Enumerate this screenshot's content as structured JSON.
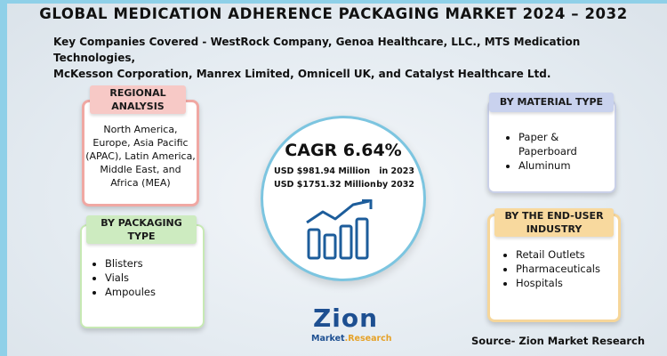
{
  "title": "GLOBAL MEDICATION ADHERENCE PACKAGING MARKET 2024 – 2032",
  "companies": {
    "line1": "Key Companies Covered - WestRock Company, Genoa Healthcare, LLC., MTS Medication Technologies,",
    "line2": "McKesson Corporation, Manrex Limited, Omnicell UK, and Catalyst Healthcare Ltd."
  },
  "regional": {
    "header_line1": "REGIONAL",
    "header_line2": "ANALYSIS",
    "body": "North America, Europe, Asia Pacific (APAC), Latin America, Middle East, and Africa (MEA)"
  },
  "packaging": {
    "header_line1": "BY PACKAGING",
    "header_line2": "TYPE",
    "items": [
      "Blisters",
      "Vials",
      "Ampoules"
    ]
  },
  "material": {
    "header": "BY MATERIAL TYPE",
    "items": [
      "Paper & Paperboard",
      "Aluminum"
    ]
  },
  "end_user": {
    "header_line1": "BY THE END-USER",
    "header_line2": "INDUSTRY",
    "items": [
      "Retail Outlets",
      "Pharmaceuticals",
      "Hospitals"
    ]
  },
  "center": {
    "cagr": "CAGR 6.64%",
    "value_2023": "USD $981.94 Million",
    "year_2023": "in 2023",
    "value_2032": "USD $1751.32 Million",
    "year_2032": "by 2032",
    "icon": "growth-bar-chart-icon"
  },
  "logo": {
    "text": "Zion",
    "sub_part1": "Market",
    "sub_part2": ".Research"
  },
  "source": "Source- Zion Market Research",
  "colors": {
    "accent_blue": "#7cc5e0",
    "regional": "#f7c9c6",
    "packaging": "#cdebc0",
    "material": "#c9d2ee",
    "end_user": "#f8d99e",
    "logo_blue": "#1d4f91",
    "logo_orange": "#e5a228"
  }
}
